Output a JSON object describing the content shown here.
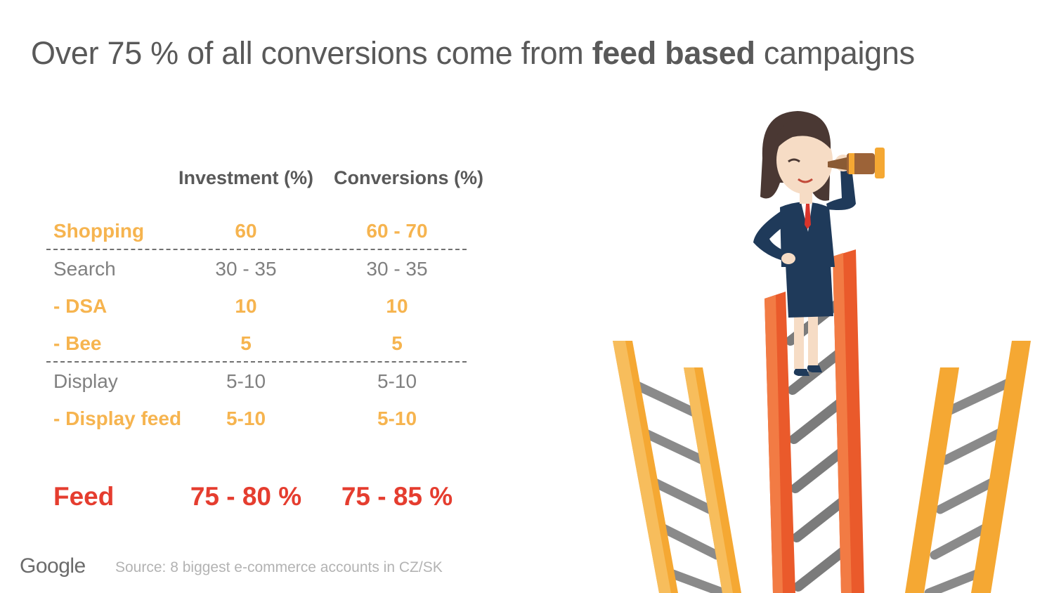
{
  "title": {
    "prefix": "Over 75 % of all conversions come from ",
    "bold": "feed based",
    "suffix": " campaigns"
  },
  "table": {
    "headers": [
      "Investment (%)",
      "Conversions (%)"
    ],
    "rows": [
      {
        "label": "Shopping",
        "investment": "60",
        "conversions": "60 - 70"
      },
      {
        "label": "Search",
        "investment": "30 - 35",
        "conversions": "30 - 35"
      },
      {
        "label": "- DSA",
        "investment": "10",
        "conversions": "10"
      },
      {
        "label": "- Bee",
        "investment": "5",
        "conversions": "5"
      },
      {
        "label": "Display",
        "investment": "5-10",
        "conversions": "5-10"
      },
      {
        "label": "- Display feed",
        "investment": "5-10",
        "conversions": "5-10"
      }
    ],
    "total": {
      "label": "Feed",
      "investment": "75 - 80 %",
      "conversions": "75 - 85 %"
    }
  },
  "footer": {
    "logo": "Google",
    "source": "Source: 8 biggest e-commerce accounts in CZ/SK"
  },
  "colors": {
    "highlight": "#f6b44f",
    "total": "#e53d2f",
    "text": "#595959"
  }
}
